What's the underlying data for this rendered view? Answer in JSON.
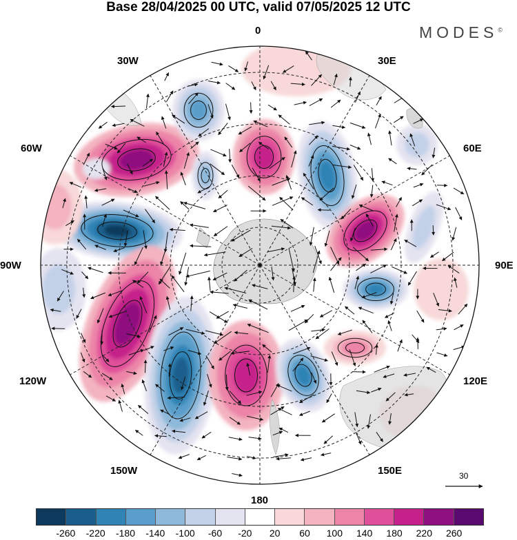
{
  "title": "Base 28/04/2025 00 UTC, valid 07/05/2025 12 UTC",
  "logo": {
    "text": "MODES",
    "mark": "©"
  },
  "longitude_labels": {
    "top": "0",
    "top_right": "30E",
    "right_upper": "60E",
    "right": "90E",
    "right_lower": "120E",
    "bottom_right": "150E",
    "bottom": "180",
    "bottom_left": "150W",
    "left_lower": "120W",
    "left": "90W",
    "left_upper": "60W",
    "top_left": "30W"
  },
  "reference_vector": {
    "label": "30"
  },
  "colorbar": {
    "colors": [
      "#0d3a5c",
      "#1a5f8c",
      "#2f83b5",
      "#5a9fcb",
      "#8fb9da",
      "#c3d1e8",
      "#e4e3f0",
      "#ffffff",
      "#f8d8d8",
      "#f3b3bf",
      "#ec85a8",
      "#e0509a",
      "#c4218a",
      "#8e117f",
      "#5a0a6e"
    ],
    "tick_labels": [
      "-260",
      "-220",
      "-180",
      "-140",
      "-100",
      "-60",
      "-20",
      "20",
      "60",
      "100",
      "140",
      "180",
      "220",
      "260"
    ]
  },
  "map_legend_colors": {
    "land": "#d8d8d8",
    "graticule": "#222222",
    "contour": "#111111"
  }
}
